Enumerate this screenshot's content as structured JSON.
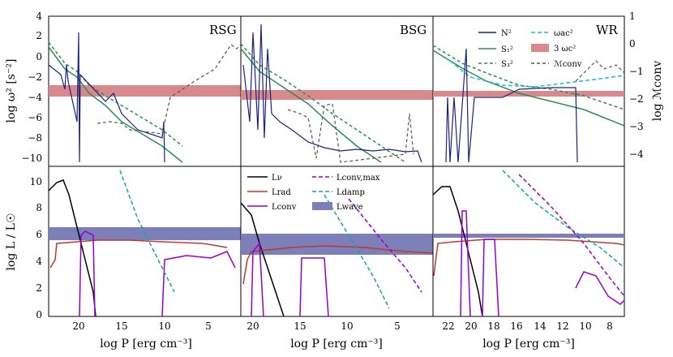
{
  "chart_data": {
    "type": "line",
    "layout": "2x3 grid of panels",
    "columns": [
      {
        "title": "RSG",
        "x_ticks": [
          "20",
          "15",
          "10",
          "5"
        ]
      },
      {
        "title": "BSG",
        "x_ticks": [
          "20",
          "15",
          "10",
          "5"
        ]
      },
      {
        "title": "WR",
        "x_ticks": [
          "22",
          "20",
          "18",
          "16",
          "14",
          "12",
          "10",
          "8"
        ]
      }
    ],
    "shared_xlabel": "log P [erg cm⁻³]",
    "top_row": {
      "ylabel": "log ω² [s⁻²]",
      "y_ticks": [
        "4",
        "2",
        "0",
        "−2",
        "−4",
        "−6",
        "−8",
        "−10"
      ],
      "ylim": [
        -11,
        4
      ],
      "right_ylabel": "log ℳconv",
      "right_ticks": [
        "1",
        "0",
        "−1",
        "−2",
        "−3",
        "−4"
      ],
      "right_ylim": [
        -4.5,
        1
      ],
      "legend": [
        "N²",
        "S₁²",
        "S₃²",
        "ωac²",
        "3 ωc²",
        "ℳconv"
      ]
    },
    "bottom_row": {
      "ylabel": "log L / L☉",
      "y_ticks": [
        "10",
        "8",
        "6",
        "4",
        "2",
        "0"
      ],
      "ylim": [
        0,
        11
      ],
      "legend": [
        "Lν",
        "Lrad",
        "Lconv",
        "Lconv,max",
        "Ldamp",
        "Lwave"
      ]
    },
    "series_colors": {
      "N2": "#1a237e",
      "S1": "#2e8b57",
      "S3": "#2e8b57",
      "omega_ac": "#17becf",
      "omega_c_band": "#d9898c",
      "M_conv": "#555555",
      "L_nu": "#000000",
      "L_rad": "#c0392b",
      "L_conv": "#9400d3",
      "L_conv_max": "#9400d3",
      "L_damp": "#17a2a2",
      "L_wave_band": "#7c7fb8"
    },
    "approximate_curves": {
      "RSG_top_S1": [
        [
          23.5,
          1
        ],
        [
          20,
          -2
        ],
        [
          18,
          -4
        ],
        [
          15,
          -5
        ],
        [
          12,
          -7
        ],
        [
          10,
          -8
        ],
        [
          7,
          -10.5
        ]
      ],
      "RSG_top_S3": [
        [
          23.5,
          1.5
        ],
        [
          20,
          -1.5
        ],
        [
          18,
          -3
        ],
        [
          15,
          -4.5
        ],
        [
          12,
          -6
        ],
        [
          10,
          -7
        ],
        [
          7,
          -9.5
        ]
      ],
      "RSG_3wc_band": [
        -3.5,
        -2.8
      ],
      "RSG_Lwave_band": [
        5.8,
        6.7
      ],
      "BSG_3wc_band": [
        -3.9,
        -3.2
      ],
      "BSG_Lwave_band": [
        4.6,
        6.0
      ],
      "WR_3wc_band": [
        -3.6,
        -3.1
      ],
      "WR_Lwave_band": [
        5.8,
        6.0
      ]
    }
  }
}
